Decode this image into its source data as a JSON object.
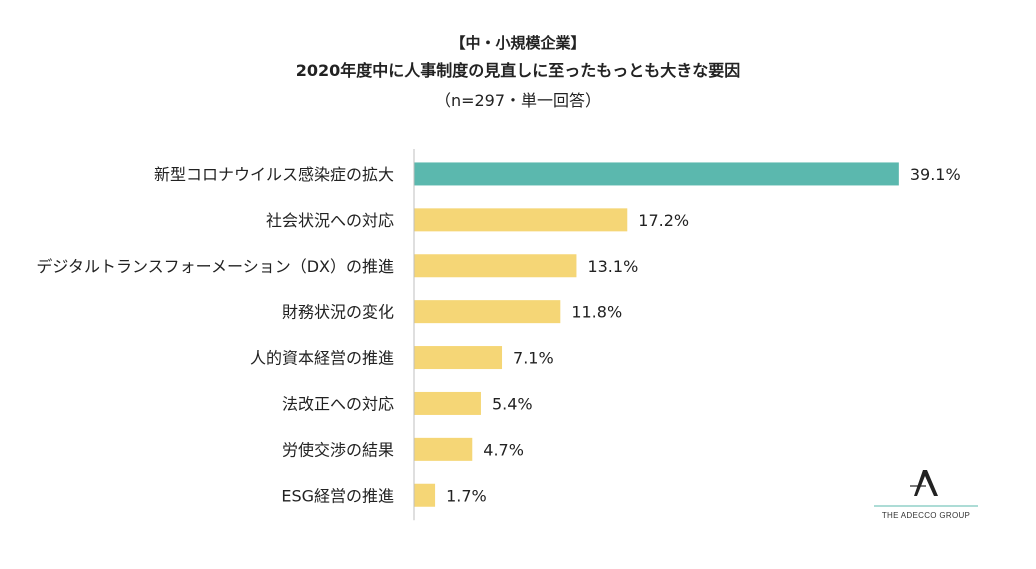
{
  "title": {
    "line1": "【中・小規模企業】",
    "line2": "2020年度中に人事制度の見直しに至ったもっとも大きな要因",
    "line3": "（n=297・単一回答）"
  },
  "chart_data": {
    "type": "bar",
    "orientation": "horizontal",
    "categories": [
      "新型コロナウイルス感染症の拡大",
      "社会状況への対応",
      "デジタルトランスフォーメーション（DX）の推進",
      "財務状況の変化",
      "人的資本経営の推進",
      "法改正への対応",
      "労使交渉の結果",
      "ESG経営の推進"
    ],
    "values": [
      39.1,
      17.2,
      13.1,
      11.8,
      7.1,
      5.4,
      4.7,
      1.7
    ],
    "value_labels": [
      "39.1%",
      "17.2%",
      "13.1%",
      "11.8%",
      "7.1%",
      "5.4%",
      "4.7%",
      "1.7%"
    ],
    "highlight_index": 0,
    "colors": {
      "highlight": "#5BB8AE",
      "default": "#F5D676",
      "axis": "#BFBFBF"
    },
    "xlim": [
      0,
      40
    ],
    "grid": false,
    "legend": "none"
  },
  "logo": {
    "caption": "THE ADECCO GROUP"
  }
}
